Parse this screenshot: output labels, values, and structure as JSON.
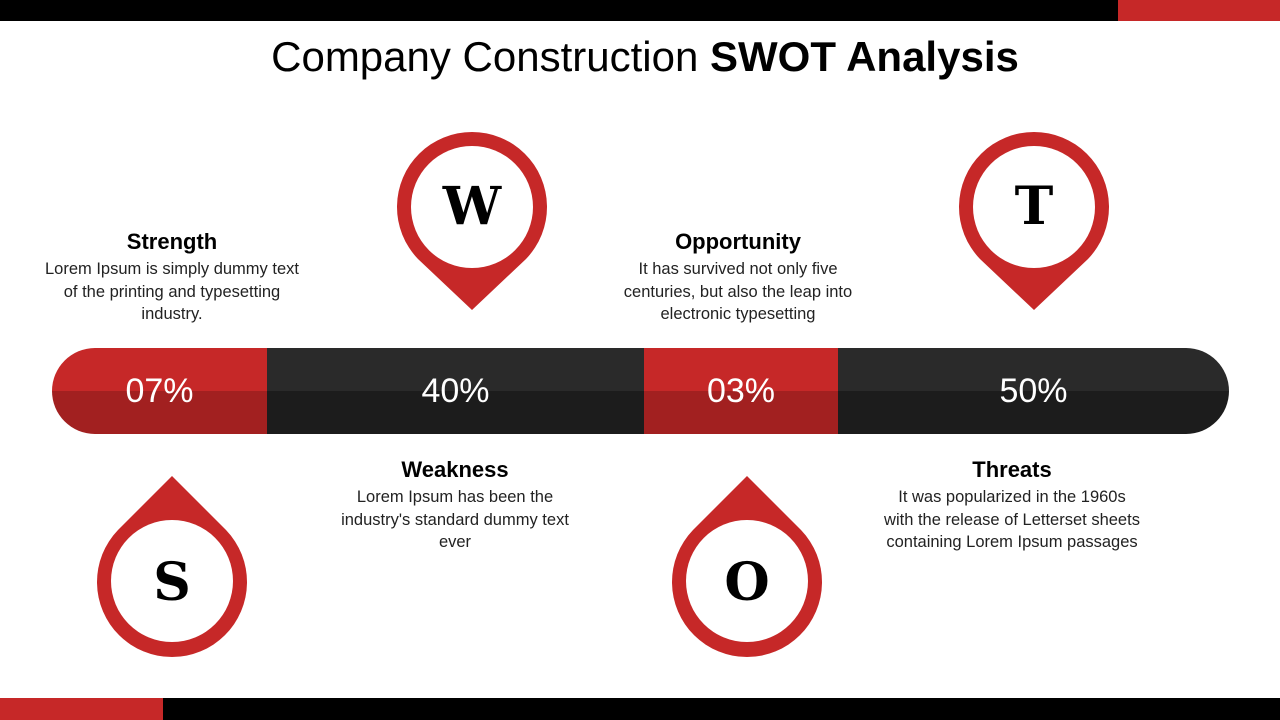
{
  "title": {
    "regular": "Company Construction",
    "bold": "SWOT Analysis"
  },
  "colors": {
    "accent": "#c62828",
    "dark": "#1c1c1c"
  },
  "items": [
    {
      "letter": "S",
      "heading": "Strength",
      "percent": "07%",
      "text": "Lorem Ipsum is simply dummy text of the printing and typesetting industry."
    },
    {
      "letter": "W",
      "heading": "Weakness",
      "percent": "40%",
      "text": "Lorem Ipsum has been the industry's standard dummy text ever"
    },
    {
      "letter": "O",
      "heading": "Opportunity",
      "percent": "03%",
      "text": "It has survived not only five centuries, but also the leap into electronic typesetting"
    },
    {
      "letter": "T",
      "heading": "Threats",
      "percent": "50%",
      "text": "It was popularized in the 1960s with the release of Letterset sheets containing Lorem Ipsum passages"
    }
  ]
}
